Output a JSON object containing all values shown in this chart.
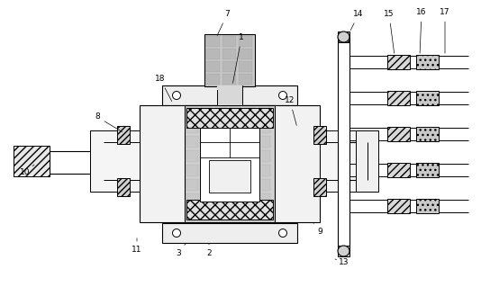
{
  "bg_color": "#ffffff",
  "lc": "#000000",
  "gray_light": "#f0f0f0",
  "gray_med": "#d8d8d8",
  "gray_dark": "#b0b0b0",
  "white": "#ffffff",
  "label_data": [
    [
      "1",
      268,
      42,
      258,
      95
    ],
    [
      "2",
      232,
      282,
      232,
      268
    ],
    [
      "3",
      198,
      282,
      208,
      268
    ],
    [
      "7",
      252,
      16,
      240,
      42
    ],
    [
      "8",
      108,
      130,
      138,
      148
    ],
    [
      "9",
      355,
      258,
      348,
      248
    ],
    [
      "10",
      28,
      192,
      38,
      183
    ],
    [
      "11",
      152,
      278,
      152,
      262
    ],
    [
      "12",
      322,
      112,
      330,
      142
    ],
    [
      "13",
      382,
      292,
      372,
      288
    ],
    [
      "14",
      398,
      16,
      388,
      36
    ],
    [
      "15",
      432,
      16,
      438,
      62
    ],
    [
      "16",
      468,
      14,
      466,
      62
    ],
    [
      "17",
      494,
      14,
      494,
      62
    ],
    [
      "18",
      178,
      88,
      192,
      115
    ]
  ]
}
